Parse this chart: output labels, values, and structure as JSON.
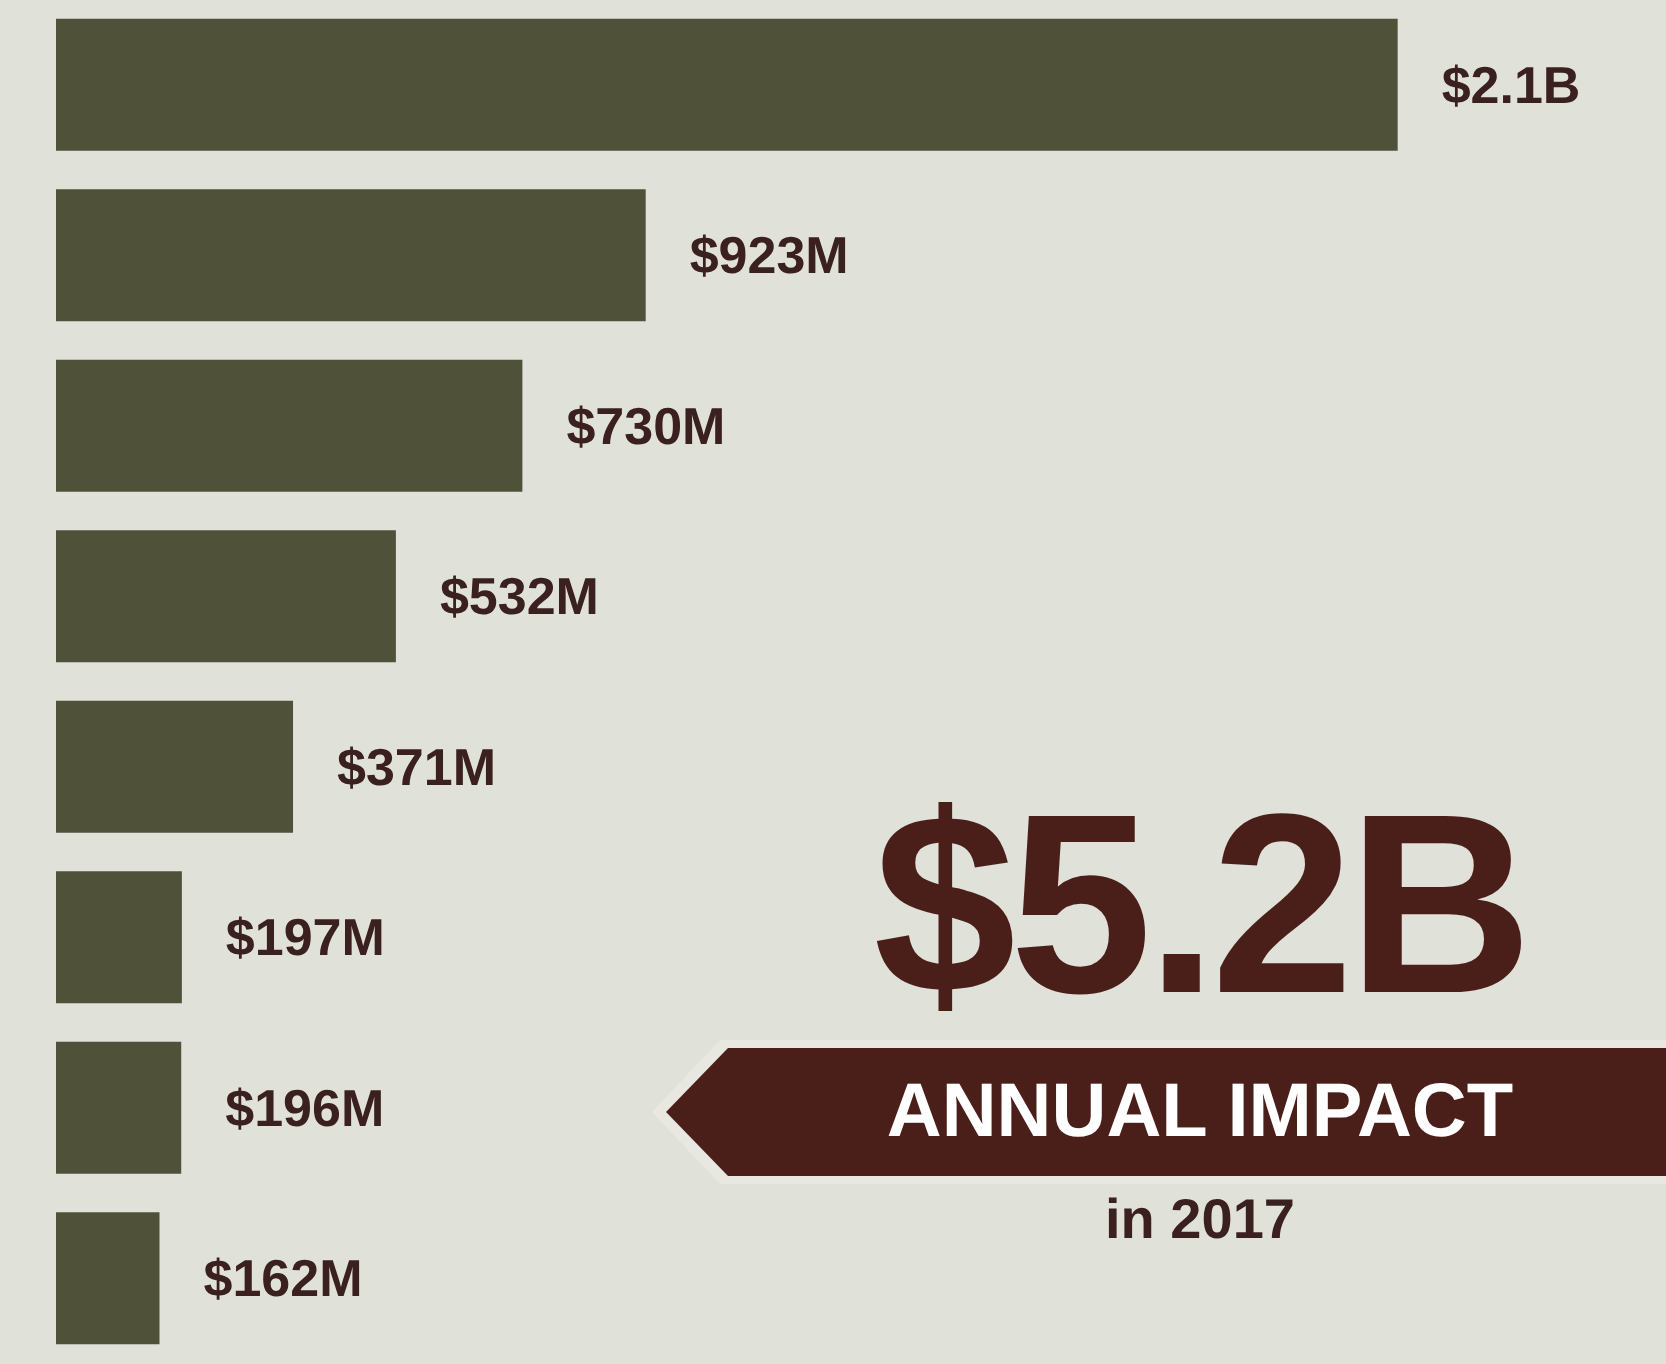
{
  "chart_data": {
    "type": "bar",
    "orientation": "horizontal",
    "categories": [
      null,
      null,
      null,
      null,
      null,
      null,
      null,
      null
    ],
    "values": [
      2100000000,
      923000000,
      730000000,
      532000000,
      371000000,
      197000000,
      196000000,
      162000000
    ],
    "value_labels": [
      "$2.1B",
      "$923M",
      "$730M",
      "$532M",
      "$371M",
      "$197M",
      "$196M",
      "$162M"
    ],
    "color": "#4f5238",
    "tick_labels": false,
    "annotations": [
      "$5.2B",
      "ANNUAL IMPACT",
      "in 2017"
    ]
  }
}
